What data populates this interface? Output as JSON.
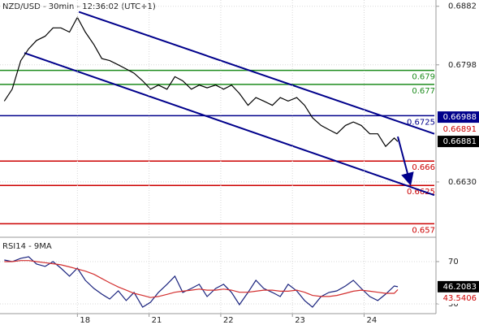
{
  "chart_data": [
    {
      "type": "line",
      "title": "NZD/USD - 30min - 12:36:02 (UTC+1)",
      "xlim": [
        -1.08,
        4.98
      ],
      "ylim": [
        0.6553,
        0.6891
      ],
      "yticks": [
        0.6882,
        0.6798,
        {
          "value": 0.663,
          "label": "0.6630"
        }
      ],
      "grid": true,
      "series": [
        {
          "color": "#000000",
          "x": [
            -1.02,
            -0.91,
            -0.79,
            -0.68,
            -0.57,
            -0.45,
            -0.34,
            -0.23,
            -0.11,
            0,
            0.11,
            0.23,
            0.34,
            0.45,
            0.57,
            0.68,
            0.79,
            0.91,
            1.02,
            1.13,
            1.25,
            1.36,
            1.47,
            1.59,
            1.7,
            1.81,
            1.93,
            2.04,
            2.15,
            2.26,
            2.38,
            2.49,
            2.6,
            2.72,
            2.83,
            2.94,
            3.06,
            3.17,
            3.28,
            3.4,
            3.51,
            3.62,
            3.74,
            3.85,
            3.96,
            4.08,
            4.19,
            4.3,
            4.42,
            4.47
          ],
          "values": [
            0.6746,
            0.6763,
            0.6804,
            0.6821,
            0.6833,
            0.6839,
            0.6851,
            0.6851,
            0.6845,
            0.6866,
            0.6845,
            0.6827,
            0.6807,
            0.6804,
            0.6798,
            0.6792,
            0.6786,
            0.6775,
            0.6763,
            0.6769,
            0.6763,
            0.6781,
            0.6775,
            0.6763,
            0.6769,
            0.6765,
            0.6769,
            0.6763,
            0.6769,
            0.6757,
            0.674,
            0.6751,
            0.6746,
            0.674,
            0.6751,
            0.6746,
            0.6751,
            0.674,
            0.6722,
            0.6711,
            0.6705,
            0.6699,
            0.6711,
            0.6716,
            0.6711,
            0.6699,
            0.6699,
            0.6681,
            0.6693,
            0.6688
          ]
        }
      ],
      "levels": [
        {
          "value": 0.679,
          "color": "#1e8c1e"
        },
        {
          "value": 0.677,
          "color": "#1e8c1e"
        },
        {
          "value": 0.6725,
          "color": "#00008b"
        },
        {
          "value": 0.666,
          "color": "#cc0000"
        },
        {
          "value": 0.6625,
          "color": "#cc0000"
        },
        {
          "value": 0.657,
          "color": "#cc0000"
        }
      ],
      "channel": [
        {
          "color": "#00008b",
          "x": [
            0.02,
            4.98
          ],
          "y": [
            0.6874,
            0.6699
          ]
        },
        {
          "color": "#00008b",
          "x": [
            -0.74,
            4.98
          ],
          "y": [
            0.6815,
            0.6611
          ]
        }
      ],
      "arrow": {
        "color": "#00008b",
        "x": [
          4.47,
          4.64
        ],
        "y": [
          0.6695,
          0.6629
        ]
      },
      "tags": [
        {
          "value": 0.66988,
          "color": "#00008b",
          "boxed": true
        },
        {
          "value": 0.66891,
          "color": "#cc0000",
          "boxed": false
        },
        {
          "value": 0.66881,
          "color": "#000000",
          "boxed": true
        }
      ]
    },
    {
      "type": "line",
      "title": "RSI14 - 9MA",
      "xlim": [
        -1.08,
        4.98
      ],
      "ylim": [
        21.5,
        89.2
      ],
      "yticks": [
        70,
        30
      ],
      "xticks": [
        {
          "value": 0,
          "label": "18"
        },
        {
          "value": 1,
          "label": "21"
        },
        {
          "value": 2,
          "label": "22"
        },
        {
          "value": 3,
          "label": "23"
        },
        {
          "value": 4,
          "label": "24"
        }
      ],
      "grid": true,
      "series": [
        {
          "color": "#1a237e",
          "x": [
            -1.02,
            -0.91,
            -0.79,
            -0.68,
            -0.57,
            -0.45,
            -0.34,
            -0.23,
            -0.11,
            0,
            0.11,
            0.23,
            0.34,
            0.45,
            0.57,
            0.68,
            0.79,
            0.91,
            1.02,
            1.13,
            1.25,
            1.36,
            1.47,
            1.59,
            1.7,
            1.81,
            1.93,
            2.04,
            2.15,
            2.26,
            2.38,
            2.49,
            2.6,
            2.72,
            2.83,
            2.94,
            3.06,
            3.17,
            3.28,
            3.4,
            3.51,
            3.62,
            3.74,
            3.85,
            3.96,
            4.08,
            4.19,
            4.3,
            4.42,
            4.47
          ],
          "values": [
            71.5,
            70,
            73.1,
            74.6,
            67.7,
            65.4,
            70,
            63.8,
            56.2,
            63.8,
            52.3,
            44.6,
            39.2,
            34.6,
            42.3,
            33.1,
            40.8,
            26.9,
            31.5,
            40.8,
            48.5,
            56.2,
            40.8,
            44.6,
            48.5,
            36.9,
            44.6,
            48.5,
            40.8,
            29.2,
            40.8,
            52.3,
            44.6,
            40.8,
            36.9,
            48.5,
            42.3,
            33.1,
            26.9,
            36.9,
            40.8,
            42.3,
            46.9,
            52.3,
            44.6,
            36.9,
            33.1,
            39.2,
            46.9,
            46.2
          ]
        },
        {
          "color": "#d32f2f",
          "x": [
            -1.02,
            -0.91,
            -0.79,
            -0.68,
            -0.57,
            -0.45,
            -0.34,
            -0.23,
            -0.11,
            0,
            0.11,
            0.23,
            0.34,
            0.45,
            0.57,
            0.68,
            0.79,
            0.91,
            1.02,
            1.13,
            1.25,
            1.36,
            1.47,
            1.59,
            1.7,
            1.81,
            1.93,
            2.04,
            2.15,
            2.26,
            2.38,
            2.49,
            2.6,
            2.72,
            2.83,
            2.94,
            3.06,
            3.17,
            3.28,
            3.4,
            3.51,
            3.62,
            3.74,
            3.85,
            3.96,
            4.08,
            4.19,
            4.3,
            4.42,
            4.47
          ],
          "values": [
            70,
            70,
            71,
            71,
            70,
            69,
            68,
            67,
            65,
            63,
            61,
            58,
            54,
            50,
            46,
            43,
            40,
            38,
            36,
            37,
            39,
            41,
            42,
            43,
            44,
            43,
            43,
            44,
            43,
            41,
            41,
            42,
            43,
            43,
            42,
            42,
            43,
            41,
            38,
            37,
            37,
            38,
            40,
            42,
            43,
            42,
            41,
            40,
            40,
            43.5
          ]
        }
      ],
      "tags": [
        {
          "value": 46.2083,
          "color": "#000000",
          "boxed": true
        },
        {
          "value": 43.5406,
          "color": "#cc0000",
          "boxed": false
        }
      ]
    }
  ]
}
